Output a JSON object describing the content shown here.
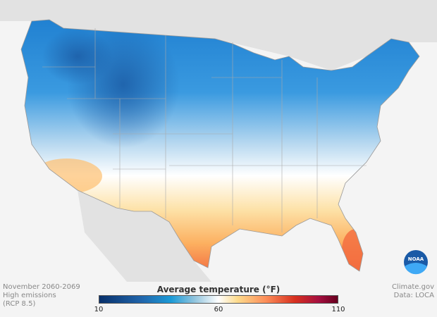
{
  "map": {
    "region": "Contiguous United States",
    "variable": "Average temperature",
    "unit": "°F"
  },
  "caption": {
    "line1": "November 2060-2069",
    "line2": "High emissions",
    "line3": "(RCP 8.5)"
  },
  "credits": {
    "line1": "Climate.gov",
    "line2": "Data: LOCA"
  },
  "legend": {
    "title": "Average temperature (°F)",
    "min": "10",
    "mid": "60",
    "max": "110",
    "colors": [
      "#08306b",
      "#2166ac",
      "#1b9ad6",
      "#92c5de",
      "#ffffff",
      "#fddb8c",
      "#fc8d59",
      "#d7301f",
      "#a50f3f",
      "#67001f"
    ]
  },
  "logo": {
    "text": "NOAA"
  }
}
